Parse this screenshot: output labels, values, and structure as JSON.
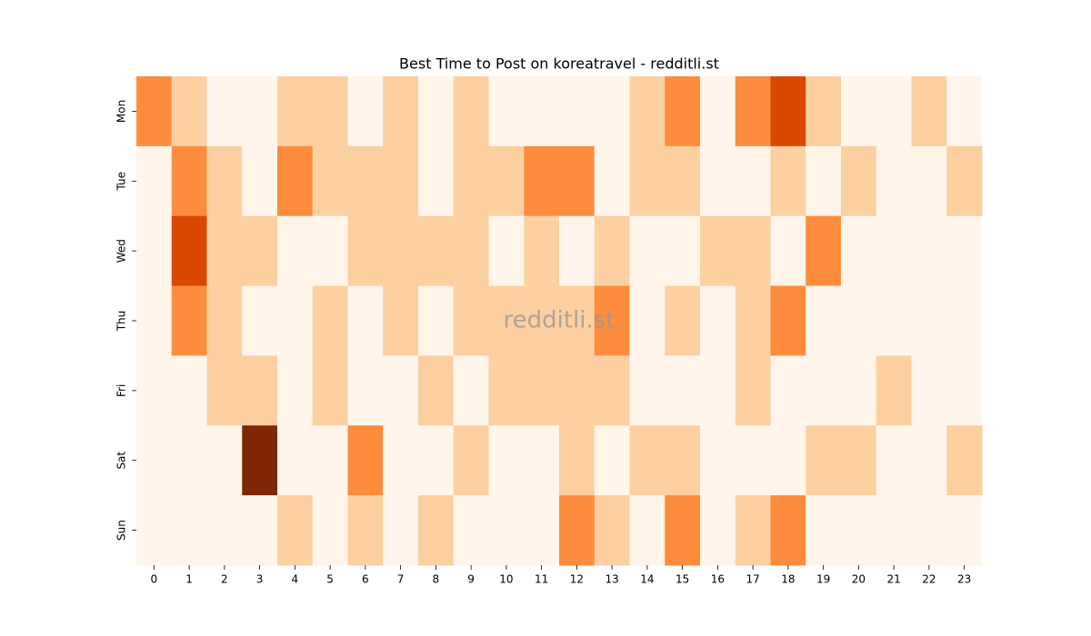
{
  "chart_data": {
    "type": "heatmap",
    "title": "Best Time to Post on koreatravel - redditli.st",
    "watermark": "redditli.st",
    "x": [
      0,
      1,
      2,
      3,
      4,
      5,
      6,
      7,
      8,
      9,
      10,
      11,
      12,
      13,
      14,
      15,
      16,
      17,
      18,
      19,
      20,
      21,
      22,
      23
    ],
    "y": [
      "Mon",
      "Tue",
      "Wed",
      "Thu",
      "Fri",
      "Sat",
      "Sun"
    ],
    "colorscale": [
      "#fff5eb",
      "#fdd0a2",
      "#fd8d3c",
      "#d94801",
      "#7f2704"
    ],
    "values": [
      [
        2,
        1,
        0,
        0,
        1,
        1,
        0,
        1,
        0,
        1,
        0,
        0,
        0,
        0,
        1,
        2,
        0,
        2,
        3,
        1,
        0,
        0,
        1,
        0
      ],
      [
        0,
        2,
        1,
        0,
        2,
        1,
        1,
        1,
        0,
        1,
        1,
        2,
        2,
        0,
        1,
        1,
        0,
        0,
        1,
        0,
        1,
        0,
        0,
        1
      ],
      [
        0,
        3,
        1,
        1,
        0,
        0,
        1,
        1,
        1,
        1,
        0,
        1,
        0,
        1,
        0,
        0,
        1,
        1,
        0,
        2,
        0,
        0,
        0,
        0
      ],
      [
        0,
        2,
        1,
        0,
        0,
        1,
        0,
        1,
        0,
        1,
        1,
        1,
        1,
        2,
        0,
        1,
        0,
        1,
        2,
        0,
        0,
        0,
        0,
        0
      ],
      [
        0,
        0,
        1,
        1,
        0,
        1,
        0,
        0,
        1,
        0,
        1,
        1,
        1,
        1,
        0,
        0,
        0,
        1,
        0,
        0,
        0,
        1,
        0,
        0
      ],
      [
        0,
        0,
        0,
        4,
        0,
        0,
        2,
        0,
        0,
        1,
        0,
        0,
        1,
        0,
        1,
        1,
        0,
        0,
        0,
        1,
        1,
        0,
        0,
        1
      ],
      [
        0,
        0,
        0,
        0,
        1,
        0,
        1,
        0,
        1,
        0,
        0,
        0,
        2,
        1,
        0,
        2,
        0,
        1,
        2,
        0,
        0,
        0,
        0,
        0
      ]
    ]
  }
}
